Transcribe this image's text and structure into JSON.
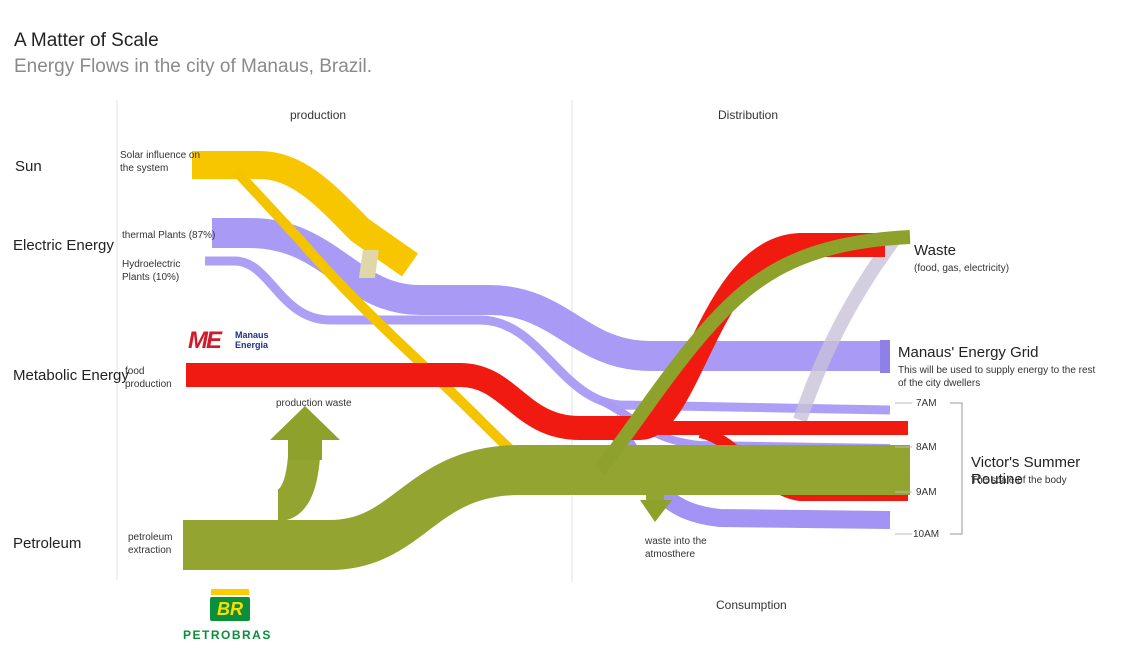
{
  "header": {
    "title": "A Matter of Scale",
    "subtitle": "Energy Flows in the city of Manaus, Brazil."
  },
  "columns": {
    "production": "production",
    "distribution": "Distribution",
    "consumption": "Consumption"
  },
  "sources": {
    "sun": "Sun",
    "electric": "Electric Energy",
    "metabolic": "Metabolic Energy",
    "petroleum": "Petroleum"
  },
  "source_notes": {
    "solar_line1": "Solar influence on",
    "solar_line2": "the system",
    "thermal": "thermal Plants (87%)",
    "hydro_line1": "Hydroelectric",
    "hydro_line2": "Plants (10%)",
    "food_line1": "food",
    "food_line2": "production",
    "petro_line1": "petroleum",
    "petro_line2": "extraction"
  },
  "flow_notes": {
    "production_waste": "production waste",
    "atmos_line1": "waste into the",
    "atmos_line2": "atmosthere"
  },
  "destinations": {
    "waste_title": "Waste",
    "waste_note": "(food, gas, electricity)",
    "grid_title": "Manaus' Energy Grid",
    "grid_note_line1": "This will be used to supply energy to the rest",
    "grid_note_line2": "of the city dwellers",
    "routine_title": "Victor's Summer Routine",
    "routine_note": "The scale of the body"
  },
  "times": [
    "7AM",
    "8AM",
    "9AM",
    "10AM"
  ],
  "logos": {
    "manaus_mark": "ME",
    "manaus_line1": "Manaus",
    "manaus_line2": "Energia",
    "br_mark": "BR",
    "petrobras": "PETROBRAS"
  },
  "colors": {
    "solar": "#f5c400",
    "electric": "#9d8cf2",
    "food": "#f01a10",
    "petroleum": "#93a530"
  }
}
